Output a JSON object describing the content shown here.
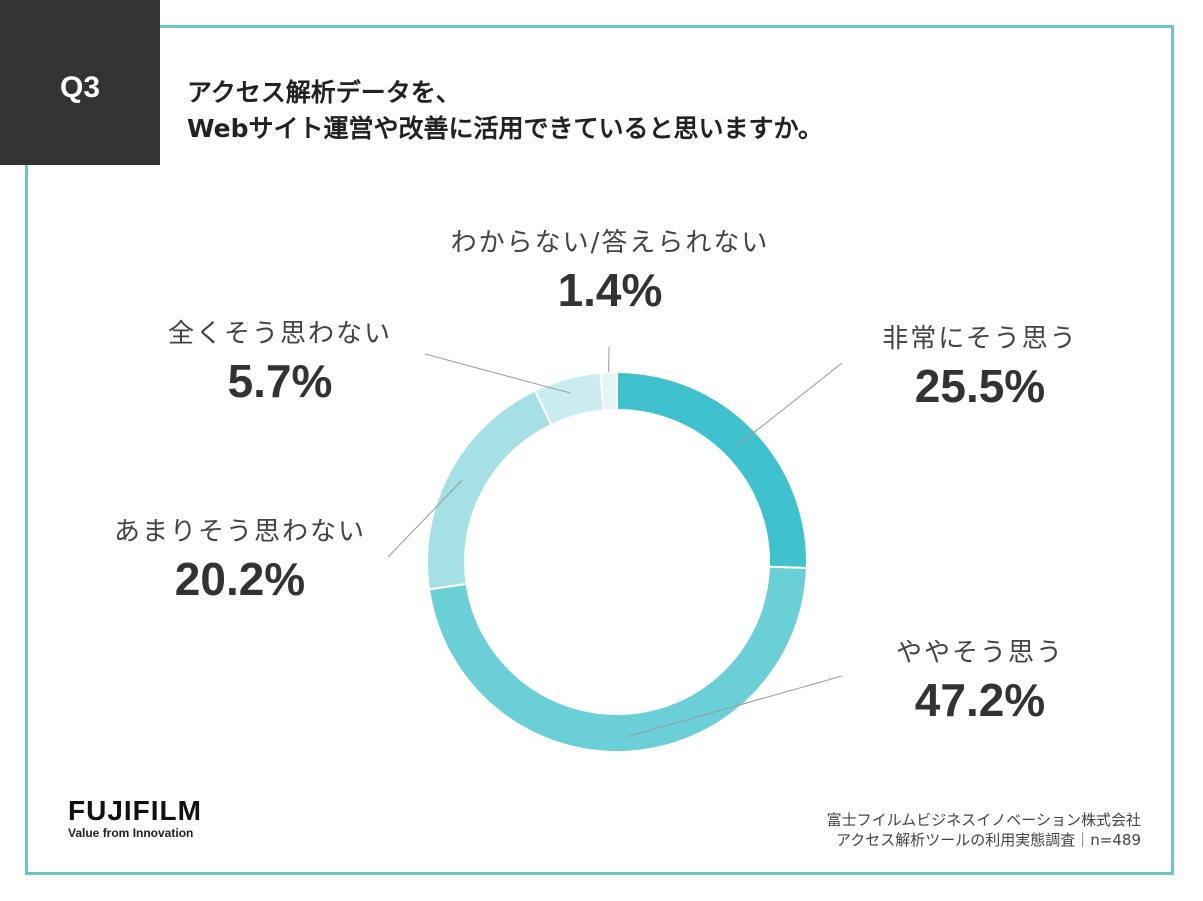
{
  "question": {
    "badge": "Q3",
    "line1": "アクセス解析データを、",
    "line2": "Webサイト運営や改善に活用できていると思いますか。"
  },
  "chart_data": {
    "type": "pie",
    "donut": true,
    "categories": [
      "非常にそう思う",
      "ややそう思う",
      "あまりそう思わない",
      "全くそう思わない",
      "わからない/答えられない"
    ],
    "values": [
      25.5,
      47.2,
      20.2,
      5.7,
      1.4
    ],
    "value_labels": [
      "25.5%",
      "47.2%",
      "20.2%",
      "5.7%",
      "1.4%"
    ],
    "colors": [
      "#40c1cf",
      "#6bcfd8",
      "#a4e0e5",
      "#c8ecef",
      "#e3f5f7"
    ],
    "start": "12 o'clock, clockwise",
    "title": "アクセス解析データを、Webサイト運営や改善に活用できていると思いますか。"
  },
  "logo": {
    "brand": "FUJIFILM",
    "tagline": "Value from Innovation"
  },
  "source": {
    "line1": "富士フイルムビジネスイノベーション株式会社",
    "line2": "アクセス解析ツールの利用実態調査｜n=489"
  },
  "colors": {
    "frame": "#6fc3c8",
    "badge_bg": "#333333"
  }
}
